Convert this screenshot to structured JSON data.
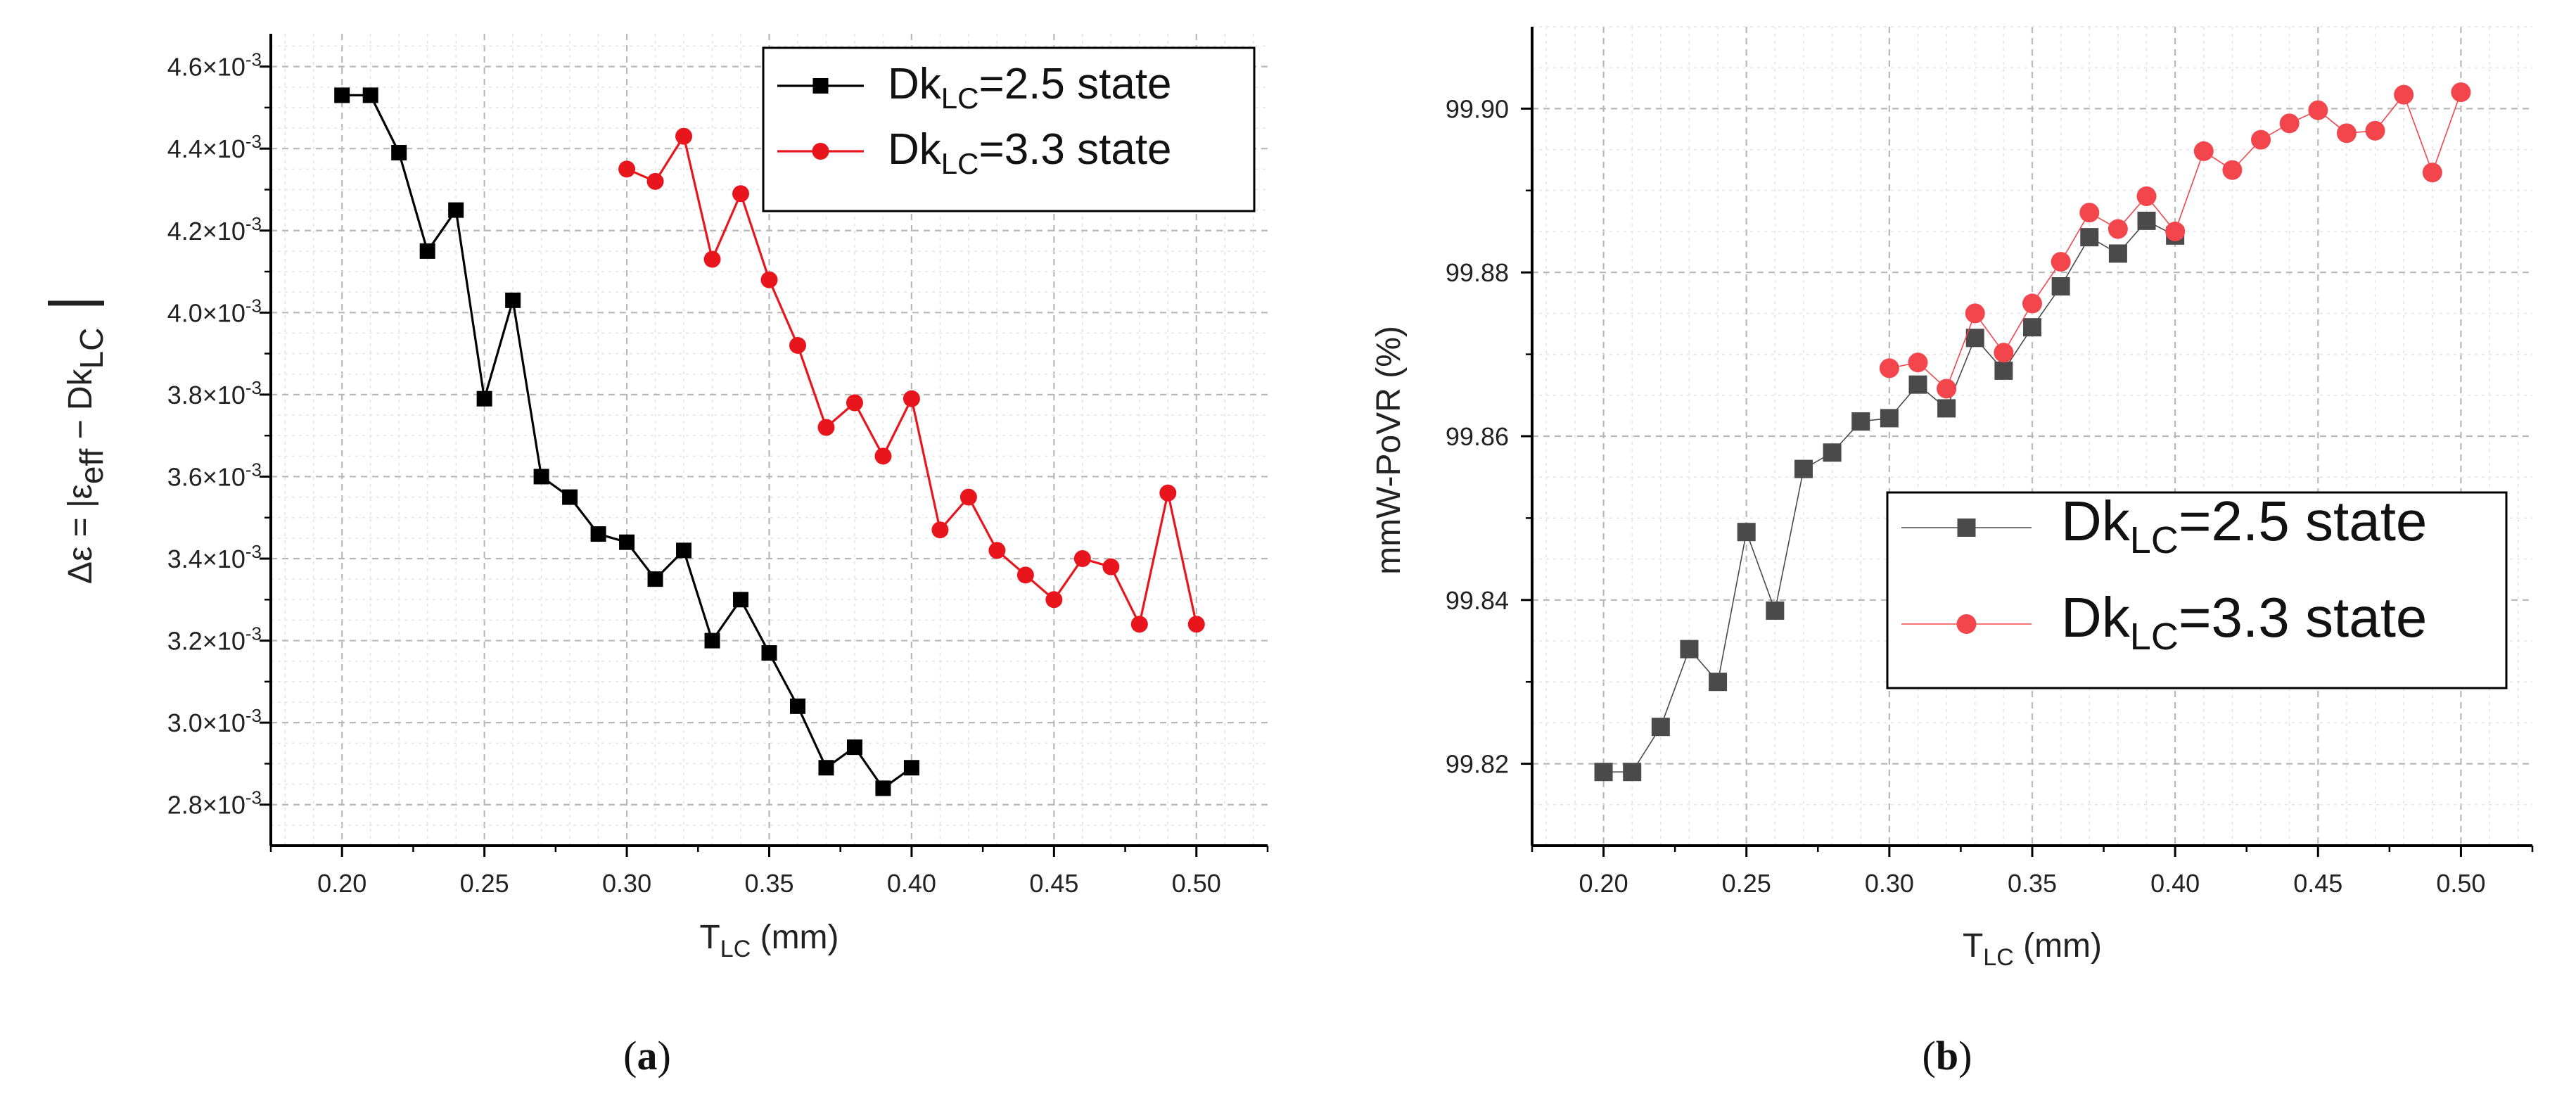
{
  "chart_data": [
    {
      "type": "line",
      "panel_label": "(a)",
      "caption_letter": "a",
      "xlabel": {
        "main": "T",
        "sub": "LC",
        "units": " (mm)"
      },
      "ylabel": {
        "parts": [
          "Δε = |ε",
          "eff",
          " − Dk",
          "LC",
          " |"
        ]
      },
      "xlim": [
        0.175,
        0.525
      ],
      "ylim": [
        2.7,
        4.68
      ],
      "x_ticks": [
        0.2,
        0.25,
        0.3,
        0.35,
        0.4,
        0.45,
        0.5
      ],
      "x_tick_labels": [
        "0.20",
        "0.25",
        "0.30",
        "0.35",
        "0.40",
        "0.45",
        "0.50"
      ],
      "y_ticks": [
        2.8,
        3.0,
        3.2,
        3.4,
        3.6,
        3.8,
        4.0,
        4.2,
        4.4,
        4.6
      ],
      "y_tick_labels": [
        "2.8×10",
        "3.0×10",
        "3.2×10",
        "3.4×10",
        "3.6×10",
        "3.8×10",
        "4.0×10",
        "4.2×10",
        "4.4×10",
        "4.6×10"
      ],
      "y_tick_exponent": "-3",
      "y_multiplier": "×10⁻³",
      "grid": true,
      "legend_position": "top-right",
      "series": [
        {
          "name": "DkLC=2.5 state",
          "legend_parts": [
            "Dk",
            "LC",
            "=2.5 state"
          ],
          "color": "#000000",
          "marker": "square",
          "x": [
            0.2,
            0.21,
            0.22,
            0.23,
            0.24,
            0.25,
            0.26,
            0.27,
            0.28,
            0.29,
            0.3,
            0.31,
            0.32,
            0.33,
            0.34,
            0.35,
            0.36,
            0.37,
            0.38,
            0.39,
            0.4
          ],
          "y": [
            4.53,
            4.53,
            4.39,
            4.15,
            4.25,
            3.79,
            4.03,
            3.6,
            3.55,
            3.46,
            3.44,
            3.35,
            3.42,
            3.2,
            3.3,
            3.17,
            3.04,
            2.89,
            2.94,
            2.84,
            2.89
          ]
        },
        {
          "name": "DkLC=3.3 state",
          "legend_parts": [
            "Dk",
            "LC",
            "=3.3 state"
          ],
          "color": "#e8161c",
          "marker": "circle",
          "x": [
            0.3,
            0.31,
            0.32,
            0.33,
            0.34,
            0.35,
            0.36,
            0.37,
            0.38,
            0.39,
            0.4,
            0.41,
            0.42,
            0.43,
            0.44,
            0.45,
            0.46,
            0.47,
            0.48,
            0.49,
            0.5
          ],
          "y": [
            4.35,
            4.32,
            4.43,
            4.13,
            4.29,
            4.08,
            3.92,
            3.72,
            3.78,
            3.65,
            3.79,
            3.47,
            3.55,
            3.42,
            3.36,
            3.3,
            3.4,
            3.38,
            3.24,
            3.56,
            3.24
          ]
        }
      ]
    },
    {
      "type": "line",
      "panel_label": "(b)",
      "caption_letter": "b",
      "xlabel": {
        "main": "T",
        "sub": "LC",
        "units": " (mm)"
      },
      "ylabel": {
        "parts": [
          "mmW-PoVR (%)"
        ]
      },
      "xlim": [
        0.175,
        0.525
      ],
      "ylim": [
        99.81,
        99.91
      ],
      "x_ticks": [
        0.2,
        0.25,
        0.3,
        0.35,
        0.4,
        0.45,
        0.5
      ],
      "x_tick_labels": [
        "0.20",
        "0.25",
        "0.30",
        "0.35",
        "0.40",
        "0.45",
        "0.50"
      ],
      "y_ticks": [
        99.82,
        99.84,
        99.86,
        99.88,
        99.9
      ],
      "y_tick_labels": [
        "99.82",
        "99.84",
        "99.86",
        "99.88",
        "99.90"
      ],
      "grid": true,
      "legend_position": "center-right",
      "series": [
        {
          "name": "DkLC=2.5 state",
          "legend_parts": [
            "Dk",
            "LC",
            "=2.5 state"
          ],
          "color": "#4a4a4a",
          "marker": "square",
          "x": [
            0.2,
            0.21,
            0.22,
            0.23,
            0.24,
            0.25,
            0.26,
            0.27,
            0.28,
            0.29,
            0.3,
            0.31,
            0.32,
            0.33,
            0.34,
            0.35,
            0.36,
            0.37,
            0.38,
            0.39,
            0.4
          ],
          "y": [
            99.819,
            99.819,
            99.8245,
            99.834,
            99.83,
            99.8483,
            99.8387,
            99.856,
            99.858,
            99.8618,
            99.8622,
            99.8663,
            99.8634,
            99.872,
            99.868,
            99.8733,
            99.8783,
            99.8843,
            99.8823,
            99.8863,
            99.8845
          ]
        },
        {
          "name": "DkLC=3.3 state",
          "legend_parts": [
            "Dk",
            "LC",
            "=3.3 state"
          ],
          "color": "#f2464c",
          "marker": "circle",
          "x": [
            0.3,
            0.31,
            0.32,
            0.33,
            0.34,
            0.35,
            0.36,
            0.37,
            0.38,
            0.39,
            0.4,
            0.41,
            0.42,
            0.43,
            0.44,
            0.45,
            0.46,
            0.47,
            0.48,
            0.49,
            0.5
          ],
          "y": [
            99.8683,
            99.869,
            99.8658,
            99.875,
            99.8702,
            99.8762,
            99.8813,
            99.8873,
            99.8853,
            99.8893,
            99.885,
            99.8948,
            99.8925,
            99.8962,
            99.8982,
            99.8998,
            99.897,
            99.8973,
            99.9017,
            99.8922,
            99.902
          ]
        }
      ]
    }
  ]
}
